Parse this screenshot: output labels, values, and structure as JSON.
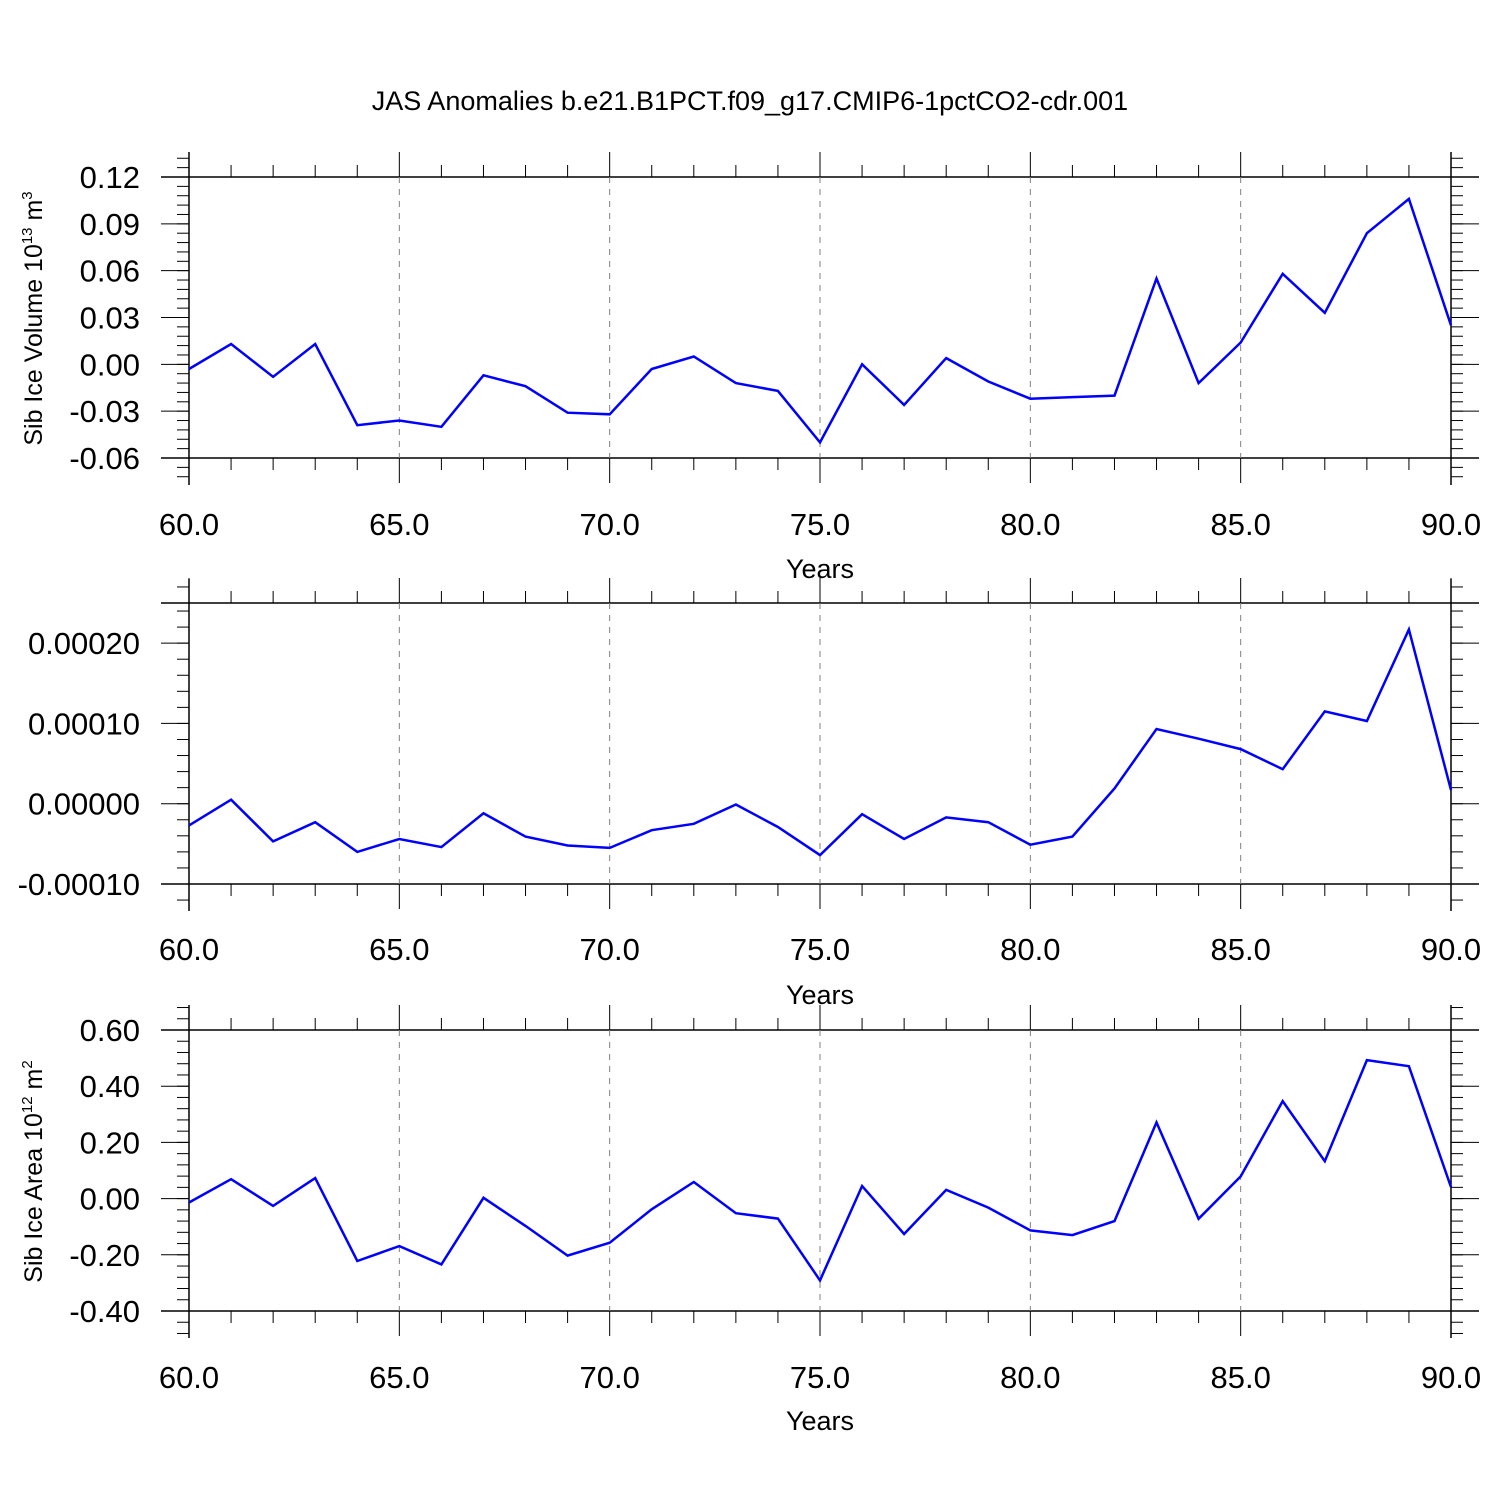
{
  "title": "JAS Anomalies b.e21.B1PCT.f09_g17.CMIP6-1pctCO2-cdr.001",
  "colors": {
    "line": "#0000ff",
    "axis": "#000000",
    "grid": "#808080"
  },
  "chart_data": [
    {
      "type": "line",
      "title": "",
      "xlabel": "Years",
      "ylabel": "Sib Ice Volume 10",
      "ylabel_sup1": "13",
      "ylabel_unit": " m",
      "ylabel_sup2": "3",
      "xlim": [
        60,
        90
      ],
      "ylim": [
        -0.06,
        0.12
      ],
      "xticks": [
        "60.0",
        "65.0",
        "70.0",
        "75.0",
        "80.0",
        "85.0",
        "90.0"
      ],
      "yticks": [
        "-0.06",
        "-0.03",
        "0.00",
        "0.03",
        "0.06",
        "0.09",
        "0.12"
      ],
      "ytick_values": [
        -0.06,
        -0.03,
        0.0,
        0.03,
        0.06,
        0.09,
        0.12
      ],
      "grid": "vertical dashed at major x ticks",
      "x": [
        60,
        61,
        62,
        63,
        64,
        65,
        66,
        67,
        68,
        69,
        70,
        71,
        72,
        73,
        74,
        75,
        76,
        77,
        78,
        79,
        80,
        81,
        82,
        83,
        84,
        85,
        86,
        87,
        88,
        89,
        90
      ],
      "series": [
        {
          "values": [
            -0.003,
            0.013,
            -0.008,
            0.013,
            -0.039,
            -0.036,
            -0.04,
            -0.007,
            -0.014,
            -0.031,
            -0.032,
            -0.003,
            0.005,
            -0.012,
            -0.017,
            -0.05,
            0.0,
            -0.026,
            0.004,
            -0.011,
            -0.022,
            -0.021,
            -0.02,
            0.055,
            -0.012,
            0.014,
            0.058,
            0.033,
            0.084,
            0.106,
            0.025
          ]
        }
      ]
    },
    {
      "type": "line",
      "title": "",
      "xlabel": "Years",
      "ylabel": "",
      "xlim": [
        60,
        90
      ],
      "ylim": [
        -0.0001,
        0.00025
      ],
      "xticks": [
        "60.0",
        "65.0",
        "70.0",
        "75.0",
        "80.0",
        "85.0",
        "90.0"
      ],
      "yticks": [
        "-0.00010",
        "0.00000",
        "0.00010",
        "0.00020"
      ],
      "ytick_values": [
        -0.0001,
        0.0,
        0.0001,
        0.0002
      ],
      "grid": "vertical dashed at major x ticks",
      "x": [
        60,
        61,
        62,
        63,
        64,
        65,
        66,
        67,
        68,
        69,
        70,
        71,
        72,
        73,
        74,
        75,
        76,
        77,
        78,
        79,
        80,
        81,
        82,
        83,
        84,
        85,
        86,
        87,
        88,
        89,
        90
      ],
      "series": [
        {
          "values": [
            -2.7e-05,
            5e-06,
            -4.7e-05,
            -2.3e-05,
            -6e-05,
            -4.4e-05,
            -5.4e-05,
            -1.2e-05,
            -4.1e-05,
            -5.2e-05,
            -5.5e-05,
            -3.3e-05,
            -2.5e-05,
            -1e-06,
            -2.9e-05,
            -6.4e-05,
            -1.3e-05,
            -4.4e-05,
            -1.7e-05,
            -2.3e-05,
            -5.1e-05,
            -4.1e-05,
            1.9e-05,
            9.3e-05,
            8.1e-05,
            6.8e-05,
            4.3e-05,
            0.000115,
            0.000103,
            0.000217,
            1.7e-05
          ]
        }
      ]
    },
    {
      "type": "line",
      "title": "",
      "xlabel": "Years",
      "ylabel": "Sib Ice Area 10",
      "ylabel_sup1": "12",
      "ylabel_unit": " m",
      "ylabel_sup2": "2",
      "xlim": [
        60,
        90
      ],
      "ylim": [
        -0.4,
        0.6
      ],
      "xticks": [
        "60.0",
        "65.0",
        "70.0",
        "75.0",
        "80.0",
        "85.0",
        "90.0"
      ],
      "yticks": [
        "-0.40",
        "-0.20",
        "0.00",
        "0.20",
        "0.40",
        "0.60"
      ],
      "ytick_values": [
        -0.4,
        -0.2,
        0.0,
        0.2,
        0.4,
        0.6
      ],
      "grid": "vertical dashed at major x ticks",
      "x": [
        60,
        61,
        62,
        63,
        64,
        65,
        66,
        67,
        68,
        69,
        70,
        71,
        72,
        73,
        74,
        75,
        76,
        77,
        78,
        79,
        80,
        81,
        82,
        83,
        84,
        85,
        86,
        87,
        88,
        89,
        90
      ],
      "series": [
        {
          "values": [
            -0.014,
            0.069,
            -0.026,
            0.073,
            -0.222,
            -0.169,
            -0.234,
            0.003,
            -0.097,
            -0.203,
            -0.157,
            -0.038,
            0.059,
            -0.052,
            -0.071,
            -0.291,
            0.045,
            -0.126,
            0.031,
            -0.032,
            -0.113,
            -0.13,
            -0.08,
            0.271,
            -0.072,
            0.079,
            0.347,
            0.133,
            0.493,
            0.471,
            0.041
          ]
        }
      ]
    }
  ]
}
